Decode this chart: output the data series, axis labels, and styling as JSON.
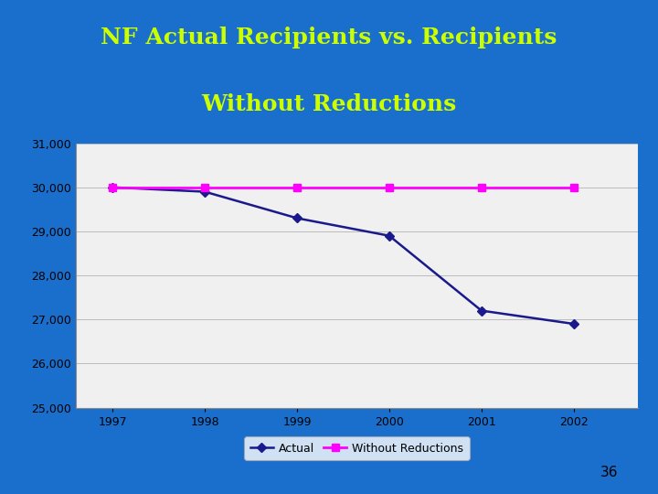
{
  "title_line1": "NF Actual Recipients vs. Recipients",
  "title_line2": "Without Reductions",
  "title_color": "#ccff00",
  "background_color": "#1a6fcc",
  "plot_bg_color": "#f0f0f0",
  "years": [
    1997,
    1998,
    1999,
    2000,
    2001,
    2002
  ],
  "actual": [
    30000,
    29900,
    29300,
    28900,
    27200,
    26900
  ],
  "without_reductions": [
    30000,
    30000,
    30000,
    30000,
    30000,
    30000
  ],
  "actual_color": "#1a1a8c",
  "without_color": "#ff00ff",
  "ylim": [
    25000,
    31000
  ],
  "yticks": [
    25000,
    26000,
    27000,
    28000,
    29000,
    30000,
    31000
  ],
  "page_number": "36",
  "legend_labels": [
    "Actual",
    "Without Reductions"
  ]
}
